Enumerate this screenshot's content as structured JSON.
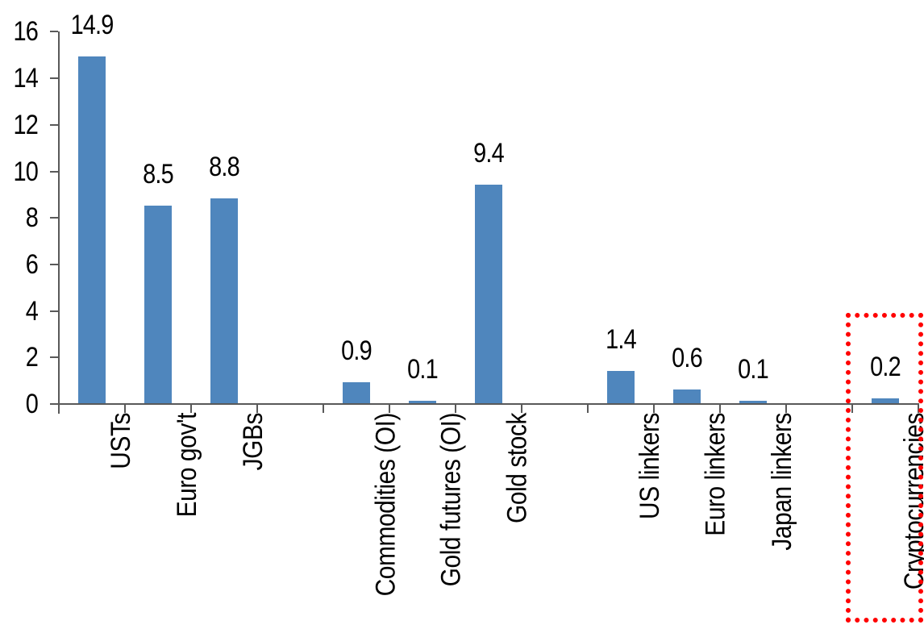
{
  "chart_data": {
    "type": "bar",
    "title": "",
    "xlabel": "",
    "ylabel": "",
    "categories": [
      "USTs",
      "Euro gov't",
      "JGBs",
      "Commodities (OI)",
      "Gold futures (OI)",
      "Gold stock",
      "US linkers",
      "Euro linkers",
      "Japan linkers",
      "Cryptocurrencies"
    ],
    "values": [
      14.9,
      8.5,
      8.8,
      0.9,
      0.1,
      9.4,
      1.4,
      0.6,
      0.1,
      0.2
    ],
    "value_labels": [
      "14.9",
      "8.5",
      "8.8",
      "0.9",
      "0.1",
      "9.4",
      "1.4",
      "0.6",
      "0.1",
      "0.2"
    ],
    "slots": [
      0,
      1,
      2,
      4,
      5,
      6,
      8,
      9,
      10,
      12
    ],
    "n_slots": 13,
    "yticks": [
      0,
      2,
      4,
      6,
      8,
      10,
      12,
      14,
      16
    ],
    "ytick_labels": [
      "0",
      "2",
      "4",
      "6",
      "8",
      "10",
      "12",
      "14",
      "16"
    ],
    "ylim": [
      0,
      16
    ],
    "grid": "off",
    "legend": "none",
    "bar_color": "#4F86BD",
    "axis_color": "#595959",
    "text_color": "#000000",
    "annotation": {
      "type": "dotted-box",
      "category": "Cryptocurrencies",
      "color": "#FF0000"
    }
  }
}
